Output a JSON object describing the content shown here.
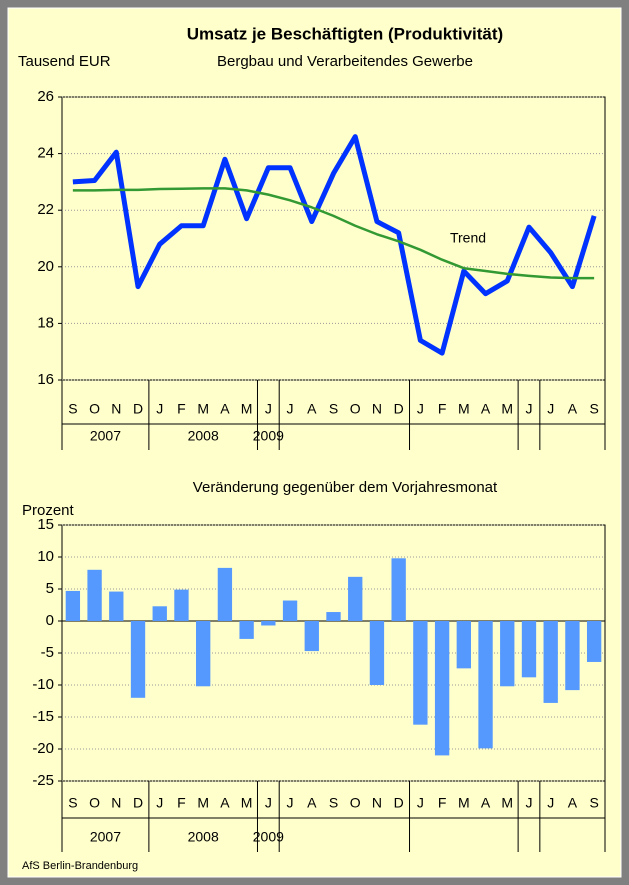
{
  "chart_data": [
    {
      "type": "line",
      "title": "Umsatz je Beschäftigten (Produktivität)",
      "subtitle": "Bergbau und Verarbeitendes Gewerbe",
      "y_label": "Tausend EUR",
      "categories": [
        "S",
        "O",
        "N",
        "D",
        "J",
        "F",
        "M",
        "A",
        "M",
        "J",
        "J",
        "A",
        "S",
        "O",
        "N",
        "D",
        "J",
        "F",
        "M",
        "A",
        "M",
        "J",
        "J",
        "A",
        "S"
      ],
      "years": [
        "2007",
        "2008",
        "2009"
      ],
      "series": [
        {
          "color": "#0033FF",
          "values": [
            23.0,
            23.05,
            24.05,
            19.3,
            20.8,
            21.45,
            21.45,
            23.8,
            21.7,
            23.5,
            23.5,
            21.6,
            23.3,
            24.6,
            21.6,
            21.2,
            17.4,
            16.95,
            19.85,
            19.05,
            19.5,
            21.4,
            20.5,
            19.3,
            21.8
          ]
        },
        {
          "name": "Trend",
          "color": "#339933",
          "values": [
            22.7,
            22.7,
            22.72,
            22.72,
            22.75,
            22.76,
            22.77,
            22.77,
            22.7,
            22.55,
            22.35,
            22.1,
            21.8,
            21.45,
            21.15,
            20.9,
            20.6,
            20.25,
            19.95,
            19.85,
            19.75,
            19.68,
            19.62,
            19.6,
            19.6
          ]
        }
      ],
      "ylim": [
        16,
        26
      ],
      "yticks": [
        16,
        18,
        20,
        22,
        24,
        26
      ],
      "grid": true
    },
    {
      "type": "bar",
      "title": "Veränderung gegenüber dem Vorjahresmonat",
      "y_label": "Prozent",
      "categories": [
        "S",
        "O",
        "N",
        "D",
        "J",
        "F",
        "M",
        "A",
        "M",
        "J",
        "J",
        "A",
        "S",
        "O",
        "N",
        "D",
        "J",
        "F",
        "M",
        "A",
        "M",
        "J",
        "J",
        "A",
        "S"
      ],
      "years": [
        "2007",
        "2008",
        "2009"
      ],
      "color": "#5599FF",
      "values": [
        4.7,
        8.0,
        4.6,
        -12.0,
        2.3,
        4.9,
        -10.2,
        8.3,
        -2.8,
        -0.7,
        3.2,
        -4.7,
        1.4,
        6.9,
        -10.0,
        9.8,
        -16.2,
        -21.0,
        -7.4,
        -19.9,
        -10.2,
        -8.8,
        -12.8,
        -10.8,
        -6.4
      ],
      "ylim": [
        -25,
        15
      ],
      "yticks": [
        -25,
        -20,
        -15,
        -10,
        -5,
        0,
        5,
        10,
        15
      ],
      "grid": true
    }
  ],
  "footer": "AfS Berlin-Brandenburg"
}
